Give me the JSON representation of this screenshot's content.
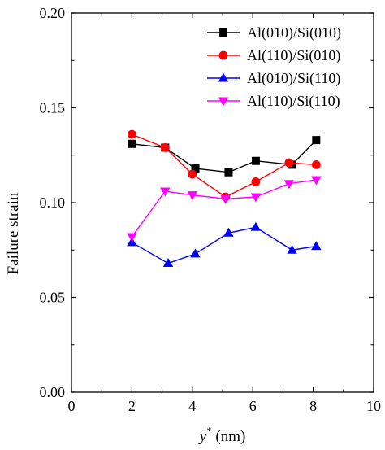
{
  "chart_data": {
    "type": "line",
    "title": "",
    "xlabel": "y",
    "xlabel_superscript": "*",
    "xlabel_unit": " (nm)",
    "ylabel": "Failure strain",
    "xlim": [
      0,
      10
    ],
    "ylim": [
      0.0,
      0.2
    ],
    "x_ticks": [
      0,
      2,
      4,
      6,
      8,
      10
    ],
    "x_tick_labels": [
      "0",
      "2",
      "4",
      "6",
      "8",
      "10"
    ],
    "y_ticks": [
      0.0,
      0.05,
      0.1,
      0.15,
      0.2
    ],
    "y_tick_labels": [
      "0.00",
      "0.05",
      "0.10",
      "0.15",
      "0.20"
    ],
    "grid": false,
    "legend_position": "top-right",
    "series": [
      {
        "name": "Al(010)/Si(010)",
        "color": "#000000",
        "marker": "square",
        "x": [
          2.0,
          3.1,
          4.1,
          5.2,
          6.1,
          7.3,
          8.1
        ],
        "y": [
          0.131,
          0.129,
          0.118,
          0.116,
          0.122,
          0.12,
          0.133
        ]
      },
      {
        "name": "Al(110)/Si(010)",
        "color": "#ff0000",
        "marker": "circle",
        "x": [
          2.0,
          3.1,
          4.0,
          5.1,
          6.1,
          7.2,
          8.1
        ],
        "y": [
          0.136,
          0.129,
          0.115,
          0.103,
          0.111,
          0.121,
          0.12
        ]
      },
      {
        "name": "Al(010)/Si(110)",
        "color": "#0000ff",
        "marker": "triangle-up",
        "x": [
          2.0,
          3.2,
          4.1,
          5.2,
          6.1,
          7.3,
          8.1
        ],
        "y": [
          0.079,
          0.068,
          0.073,
          0.084,
          0.087,
          0.075,
          0.077
        ]
      },
      {
        "name": "Al(110)/Si(110)",
        "color": "#ff00ff",
        "marker": "triangle-down",
        "x": [
          2.0,
          3.1,
          4.0,
          5.1,
          6.1,
          7.2,
          8.1
        ],
        "y": [
          0.082,
          0.106,
          0.104,
          0.102,
          0.103,
          0.11,
          0.112
        ]
      }
    ]
  }
}
